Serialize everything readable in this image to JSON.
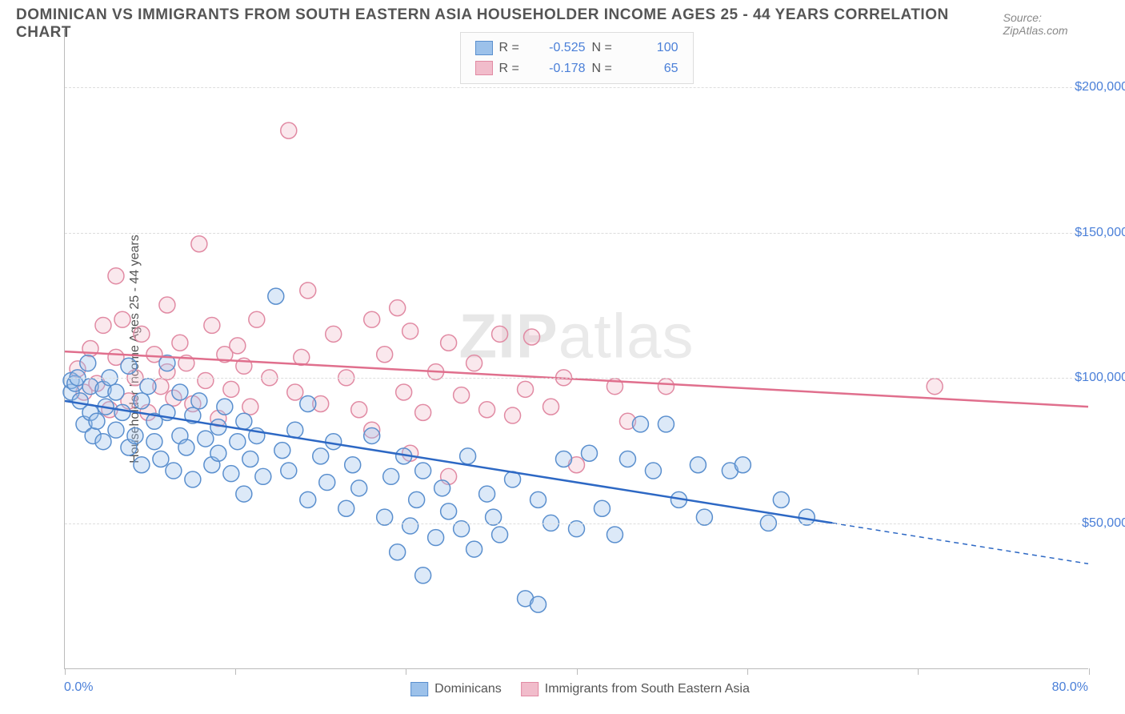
{
  "header": {
    "title": "DOMINICAN VS IMMIGRANTS FROM SOUTH EASTERN ASIA HOUSEHOLDER INCOME AGES 25 - 44 YEARS CORRELATION CHART",
    "source_prefix": "Source: ",
    "source_name": "ZipAtlas.com"
  },
  "chart": {
    "type": "scatter",
    "xlim": [
      0,
      80
    ],
    "ylim": [
      0,
      220000
    ],
    "y_gridlines": [
      50000,
      100000,
      150000,
      200000
    ],
    "ytick_labels": [
      "$50,000",
      "$100,000",
      "$150,000",
      "$200,000"
    ],
    "xtick_positions": [
      0,
      13.3,
      26.6,
      40,
      53.3,
      66.6,
      80
    ],
    "xaxis_min_label": "0.0%",
    "xaxis_max_label": "80.0%",
    "yaxis_title": "Householder Income Ages 25 - 44 years",
    "background_color": "#ffffff",
    "grid_color": "#dddddd",
    "axis_color": "#bbbbbb",
    "tick_label_color": "#4a7fd8",
    "title_color": "#555555",
    "watermark": "ZIPatlas",
    "marker_radius": 10,
    "marker_fill_opacity": 0.35,
    "marker_stroke_width": 1.5,
    "trendline_width": 2.5,
    "series": [
      {
        "name": "Dominicans",
        "fill_color": "#9cc1ea",
        "stroke_color": "#5a8fce",
        "line_color": "#2d68c4",
        "R": "-0.525",
        "N": "100",
        "trend": {
          "x1": 0,
          "y1": 92000,
          "x2": 60,
          "y2": 50000,
          "x_dash_to": 80,
          "y_dash_to": 36000
        },
        "points": [
          [
            0.5,
            95000
          ],
          [
            0.5,
            99000
          ],
          [
            0.8,
            98000
          ],
          [
            1,
            100000
          ],
          [
            1.2,
            92000
          ],
          [
            1.5,
            84000
          ],
          [
            1.8,
            105000
          ],
          [
            2,
            97000
          ],
          [
            2,
            88000
          ],
          [
            2.2,
            80000
          ],
          [
            2.5,
            85000
          ],
          [
            3,
            96000
          ],
          [
            3,
            78000
          ],
          [
            3.2,
            90000
          ],
          [
            3.5,
            100000
          ],
          [
            4,
            82000
          ],
          [
            4,
            95000
          ],
          [
            4.5,
            88000
          ],
          [
            5,
            104000
          ],
          [
            5,
            76000
          ],
          [
            5.5,
            80000
          ],
          [
            6,
            92000
          ],
          [
            6,
            70000
          ],
          [
            6.5,
            97000
          ],
          [
            7,
            85000
          ],
          [
            7,
            78000
          ],
          [
            7.5,
            72000
          ],
          [
            8,
            88000
          ],
          [
            8,
            105000
          ],
          [
            8.5,
            68000
          ],
          [
            9,
            80000
          ],
          [
            9,
            95000
          ],
          [
            9.5,
            76000
          ],
          [
            10,
            87000
          ],
          [
            10,
            65000
          ],
          [
            10.5,
            92000
          ],
          [
            11,
            79000
          ],
          [
            11.5,
            70000
          ],
          [
            12,
            83000
          ],
          [
            12,
            74000
          ],
          [
            12.5,
            90000
          ],
          [
            13,
            67000
          ],
          [
            13.5,
            78000
          ],
          [
            14,
            85000
          ],
          [
            14,
            60000
          ],
          [
            14.5,
            72000
          ],
          [
            15,
            80000
          ],
          [
            15.5,
            66000
          ],
          [
            16.5,
            128000
          ],
          [
            17,
            75000
          ],
          [
            17.5,
            68000
          ],
          [
            18,
            82000
          ],
          [
            19,
            58000
          ],
          [
            19,
            91000
          ],
          [
            20,
            73000
          ],
          [
            20.5,
            64000
          ],
          [
            21,
            78000
          ],
          [
            22,
            55000
          ],
          [
            22.5,
            70000
          ],
          [
            23,
            62000
          ],
          [
            24,
            80000
          ],
          [
            25,
            52000
          ],
          [
            25.5,
            66000
          ],
          [
            26,
            40000
          ],
          [
            26.5,
            73000
          ],
          [
            27,
            49000
          ],
          [
            27.5,
            58000
          ],
          [
            28,
            32000
          ],
          [
            28,
            68000
          ],
          [
            29,
            45000
          ],
          [
            29.5,
            62000
          ],
          [
            30,
            54000
          ],
          [
            31,
            48000
          ],
          [
            31.5,
            73000
          ],
          [
            32,
            41000
          ],
          [
            33,
            60000
          ],
          [
            33.5,
            52000
          ],
          [
            34,
            46000
          ],
          [
            35,
            65000
          ],
          [
            36,
            24000
          ],
          [
            37,
            22000
          ],
          [
            37,
            58000
          ],
          [
            38,
            50000
          ],
          [
            39,
            72000
          ],
          [
            40,
            48000
          ],
          [
            41,
            74000
          ],
          [
            42,
            55000
          ],
          [
            43,
            46000
          ],
          [
            44,
            72000
          ],
          [
            45,
            84000
          ],
          [
            46,
            68000
          ],
          [
            47,
            84000
          ],
          [
            48,
            58000
          ],
          [
            49.5,
            70000
          ],
          [
            50,
            52000
          ],
          [
            52,
            68000
          ],
          [
            53,
            70000
          ],
          [
            55,
            50000
          ],
          [
            56,
            58000
          ],
          [
            58,
            52000
          ]
        ]
      },
      {
        "name": "Immigrants from South Eastern Asia",
        "fill_color": "#f1bccb",
        "stroke_color": "#e18aa3",
        "line_color": "#e06f8d",
        "R": "-0.178",
        "N": "65",
        "trend": {
          "x1": 0,
          "y1": 109000,
          "x2": 80,
          "y2": 90000
        },
        "points": [
          [
            1,
            103000
          ],
          [
            1.5,
            95000
          ],
          [
            2,
            110000
          ],
          [
            2.5,
            98000
          ],
          [
            3,
            118000
          ],
          [
            3.5,
            89000
          ],
          [
            4,
            107000
          ],
          [
            4,
            135000
          ],
          [
            4.5,
            120000
          ],
          [
            5,
            92000
          ],
          [
            5.5,
            100000
          ],
          [
            6,
            115000
          ],
          [
            6.5,
            88000
          ],
          [
            7,
            108000
          ],
          [
            7.5,
            97000
          ],
          [
            8,
            125000
          ],
          [
            8,
            102000
          ],
          [
            8.5,
            93000
          ],
          [
            9,
            112000
          ],
          [
            9.5,
            105000
          ],
          [
            10,
            91000
          ],
          [
            10.5,
            146000
          ],
          [
            11,
            99000
          ],
          [
            11.5,
            118000
          ],
          [
            12,
            86000
          ],
          [
            12.5,
            108000
          ],
          [
            13,
            96000
          ],
          [
            13.5,
            111000
          ],
          [
            14,
            104000
          ],
          [
            14.5,
            90000
          ],
          [
            15,
            120000
          ],
          [
            16,
            100000
          ],
          [
            17.5,
            185000
          ],
          [
            18,
            95000
          ],
          [
            18.5,
            107000
          ],
          [
            19,
            130000
          ],
          [
            20,
            91000
          ],
          [
            21,
            115000
          ],
          [
            22,
            100000
          ],
          [
            23,
            89000
          ],
          [
            24,
            120000
          ],
          [
            25,
            108000
          ],
          [
            26,
            124000
          ],
          [
            26.5,
            95000
          ],
          [
            27,
            116000
          ],
          [
            28,
            88000
          ],
          [
            29,
            102000
          ],
          [
            30,
            112000
          ],
          [
            31,
            94000
          ],
          [
            32,
            105000
          ],
          [
            33,
            89000
          ],
          [
            34,
            115000
          ],
          [
            35,
            87000
          ],
          [
            36,
            96000
          ],
          [
            36.5,
            114000
          ],
          [
            38,
            90000
          ],
          [
            39,
            100000
          ],
          [
            30,
            66000
          ],
          [
            40,
            70000
          ],
          [
            43,
            97000
          ],
          [
            47,
            97000
          ],
          [
            44,
            85000
          ],
          [
            27,
            74000
          ],
          [
            24,
            82000
          ],
          [
            68,
            97000
          ]
        ]
      }
    ]
  },
  "legend_bottom": {
    "items": [
      "Dominicans",
      "Immigrants from South Eastern Asia"
    ]
  }
}
